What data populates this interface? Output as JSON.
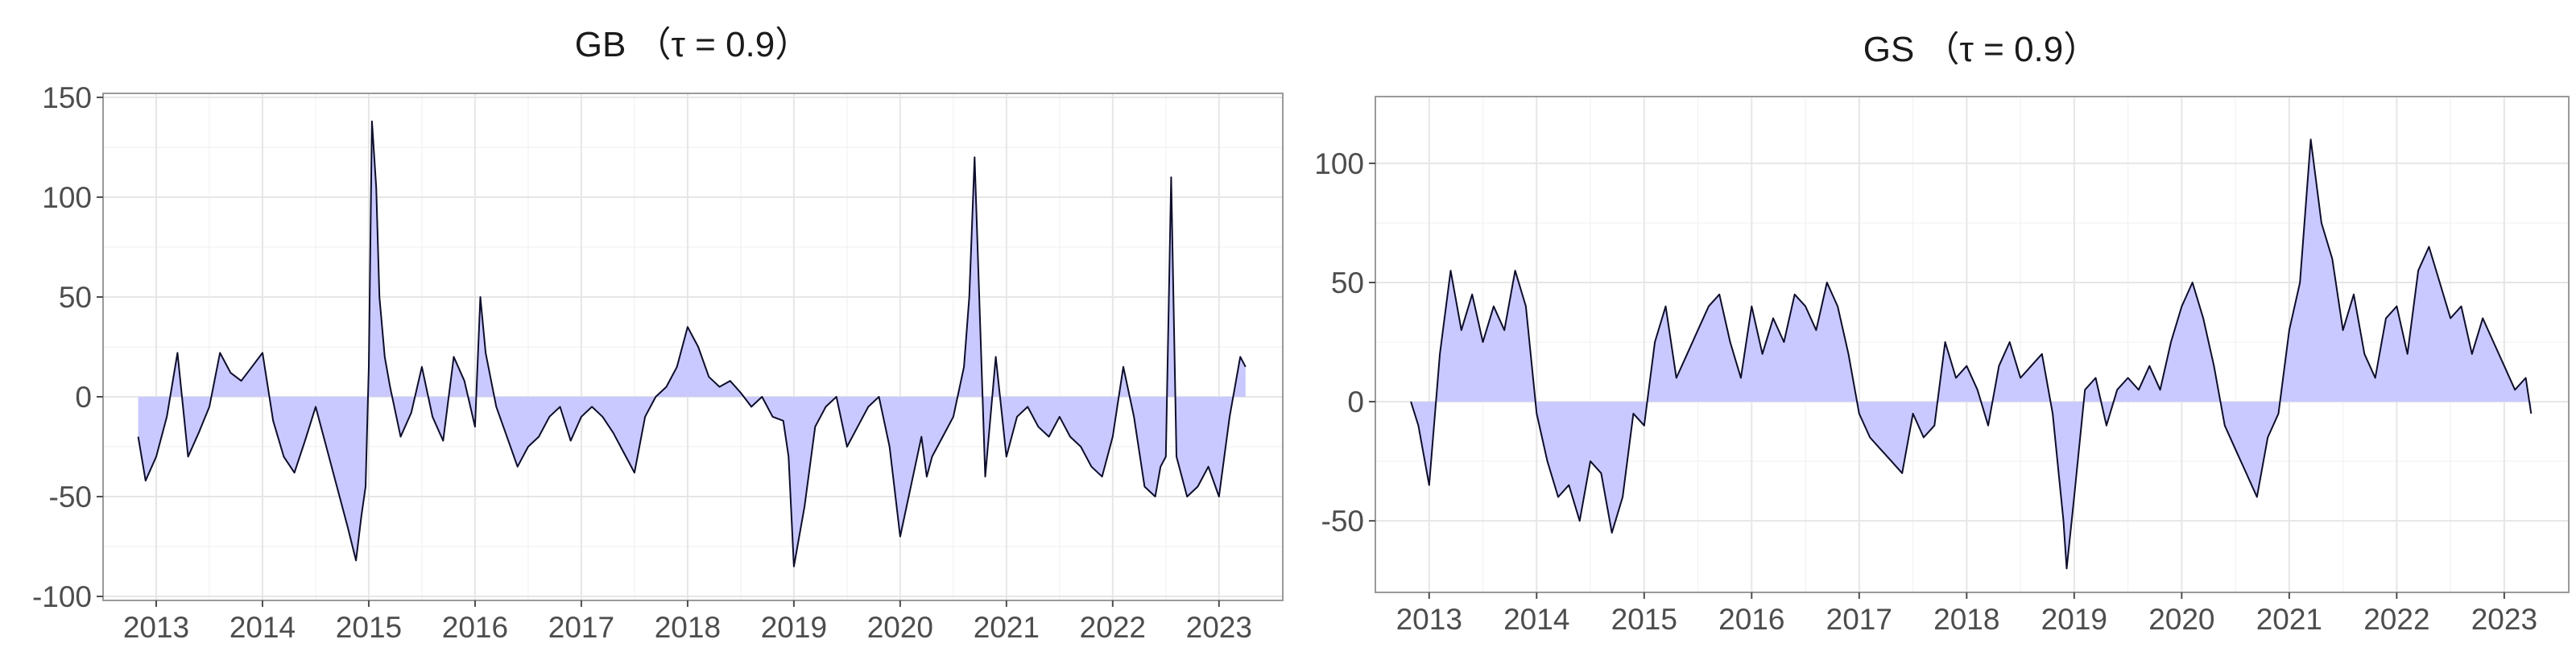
{
  "style": {
    "line_color": "#0d0d2b",
    "fill_color": "#c9c9ff",
    "grid_color": "#e6e6e6",
    "axis_text_color": "#4d4d4d"
  },
  "chart_data": [
    {
      "type": "area",
      "title": "GB （τ = 0.9）",
      "xlabel": "",
      "ylabel": "",
      "xlim": [
        2012.5,
        2023.6
      ],
      "ylim": [
        -102,
        152
      ],
      "xticks": [
        2013,
        2014,
        2015,
        2016,
        2017,
        2018,
        2019,
        2020,
        2021,
        2022,
        2023
      ],
      "yticks": [
        -100,
        -50,
        0,
        50,
        100,
        150
      ],
      "grid": true,
      "baseline": 0,
      "series": [
        {
          "x": [
            2012.83,
            2012.9,
            2013.0,
            2013.1,
            2013.2,
            2013.3,
            2013.4,
            2013.5,
            2013.6,
            2013.7,
            2013.8,
            2013.9,
            2014.0,
            2014.1,
            2014.2,
            2014.3,
            2014.4,
            2014.5,
            2014.6,
            2014.7,
            2014.8,
            2014.88,
            2014.93,
            2014.97,
            2015.0,
            2015.03,
            2015.07,
            2015.1,
            2015.15,
            2015.2,
            2015.3,
            2015.4,
            2015.5,
            2015.6,
            2015.7,
            2015.8,
            2015.9,
            2016.0,
            2016.05,
            2016.1,
            2016.2,
            2016.3,
            2016.4,
            2016.5,
            2016.6,
            2016.7,
            2016.8,
            2016.9,
            2017.0,
            2017.1,
            2017.2,
            2017.3,
            2017.4,
            2017.5,
            2017.6,
            2017.7,
            2017.8,
            2017.9,
            2018.0,
            2018.1,
            2018.2,
            2018.3,
            2018.4,
            2018.5,
            2018.6,
            2018.7,
            2018.8,
            2018.9,
            2018.95,
            2019.0,
            2019.1,
            2019.2,
            2019.3,
            2019.4,
            2019.5,
            2019.6,
            2019.7,
            2019.8,
            2019.9,
            2020.0,
            2020.1,
            2020.2,
            2020.25,
            2020.3,
            2020.4,
            2020.5,
            2020.6,
            2020.65,
            2020.7,
            2020.75,
            2020.8,
            2020.9,
            2021.0,
            2021.1,
            2021.2,
            2021.3,
            2021.4,
            2021.5,
            2021.6,
            2021.7,
            2021.8,
            2021.9,
            2022.0,
            2022.1,
            2022.2,
            2022.3,
            2022.4,
            2022.45,
            2022.5,
            2022.55,
            2022.6,
            2022.7,
            2022.8,
            2022.9,
            2023.0,
            2023.1,
            2023.2,
            2023.25
          ],
          "y": [
            -20,
            -42,
            -30,
            -10,
            22,
            -30,
            -18,
            -5,
            22,
            12,
            8,
            15,
            22,
            -12,
            -30,
            -38,
            -22,
            -5,
            -25,
            -45,
            -65,
            -82,
            -60,
            -45,
            15,
            138,
            105,
            50,
            20,
            5,
            -20,
            -8,
            15,
            -10,
            -22,
            20,
            8,
            -15,
            50,
            22,
            -5,
            -20,
            -35,
            -25,
            -20,
            -10,
            -5,
            -22,
            -10,
            -5,
            -10,
            -18,
            -28,
            -38,
            -10,
            0,
            5,
            15,
            35,
            25,
            10,
            5,
            8,
            2,
            -5,
            0,
            -10,
            -12,
            -30,
            -85,
            -55,
            -15,
            -5,
            0,
            -25,
            -15,
            -5,
            0,
            -25,
            -70,
            -45,
            -20,
            -40,
            -30,
            -20,
            -10,
            15,
            50,
            120,
            40,
            -40,
            20,
            -30,
            -10,
            -5,
            -15,
            -20,
            -10,
            -20,
            -25,
            -35,
            -40,
            -20,
            15,
            -10,
            -45,
            -50,
            -35,
            -30,
            110,
            -30,
            -50,
            -45,
            -35,
            -50,
            -10,
            20,
            15
          ]
        }
      ]
    },
    {
      "type": "area",
      "title": "GS （τ = 0.9）",
      "xlabel": "",
      "ylabel": "",
      "xlim": [
        2012.5,
        2023.6
      ],
      "ylim": [
        -80,
        128
      ],
      "xticks": [
        2013,
        2014,
        2015,
        2016,
        2017,
        2018,
        2019,
        2020,
        2021,
        2022,
        2023
      ],
      "yticks": [
        -50,
        0,
        50,
        100
      ],
      "grid": true,
      "baseline": 0,
      "series": [
        {
          "x": [
            2012.83,
            2012.9,
            2013.0,
            2013.1,
            2013.2,
            2013.3,
            2013.4,
            2013.5,
            2013.6,
            2013.7,
            2013.8,
            2013.9,
            2014.0,
            2014.1,
            2014.2,
            2014.3,
            2014.4,
            2014.5,
            2014.6,
            2014.7,
            2014.8,
            2014.9,
            2015.0,
            2015.1,
            2015.2,
            2015.3,
            2015.4,
            2015.5,
            2015.6,
            2015.7,
            2015.8,
            2015.9,
            2016.0,
            2016.1,
            2016.2,
            2016.3,
            2016.4,
            2016.5,
            2016.6,
            2016.7,
            2016.8,
            2016.9,
            2017.0,
            2017.1,
            2017.2,
            2017.3,
            2017.4,
            2017.5,
            2017.6,
            2017.7,
            2017.8,
            2017.9,
            2018.0,
            2018.1,
            2018.2,
            2018.3,
            2018.4,
            2018.5,
            2018.6,
            2018.7,
            2018.8,
            2018.9,
            2018.93,
            2019.0,
            2019.1,
            2019.2,
            2019.3,
            2019.4,
            2019.5,
            2019.6,
            2019.7,
            2019.8,
            2019.9,
            2020.0,
            2020.1,
            2020.2,
            2020.3,
            2020.4,
            2020.5,
            2020.6,
            2020.7,
            2020.8,
            2020.9,
            2021.0,
            2021.1,
            2021.2,
            2021.3,
            2021.4,
            2021.5,
            2021.6,
            2021.7,
            2021.8,
            2021.9,
            2022.0,
            2022.1,
            2022.2,
            2022.3,
            2022.4,
            2022.5,
            2022.6,
            2022.7,
            2022.8,
            2022.9,
            2023.0,
            2023.1,
            2023.2,
            2023.25
          ],
          "y": [
            0,
            -10,
            -35,
            20,
            55,
            30,
            45,
            25,
            40,
            30,
            55,
            40,
            -5,
            -25,
            -40,
            -35,
            -50,
            -25,
            -30,
            -55,
            -40,
            -5,
            -10,
            25,
            40,
            10,
            20,
            30,
            40,
            45,
            25,
            10,
            40,
            20,
            35,
            25,
            45,
            40,
            30,
            50,
            40,
            20,
            -5,
            -15,
            -20,
            -25,
            -30,
            -5,
            -15,
            -10,
            25,
            10,
            15,
            5,
            -10,
            15,
            25,
            10,
            15,
            20,
            -5,
            -50,
            -70,
            -40,
            5,
            10,
            -10,
            5,
            10,
            5,
            15,
            5,
            25,
            40,
            50,
            35,
            15,
            -10,
            -20,
            -30,
            -40,
            -15,
            -5,
            30,
            50,
            110,
            75,
            60,
            30,
            45,
            20,
            10,
            35,
            40,
            20,
            55,
            65,
            50,
            35,
            40,
            20,
            35,
            25,
            15,
            5,
            10,
            -5
          ]
        }
      ]
    }
  ]
}
